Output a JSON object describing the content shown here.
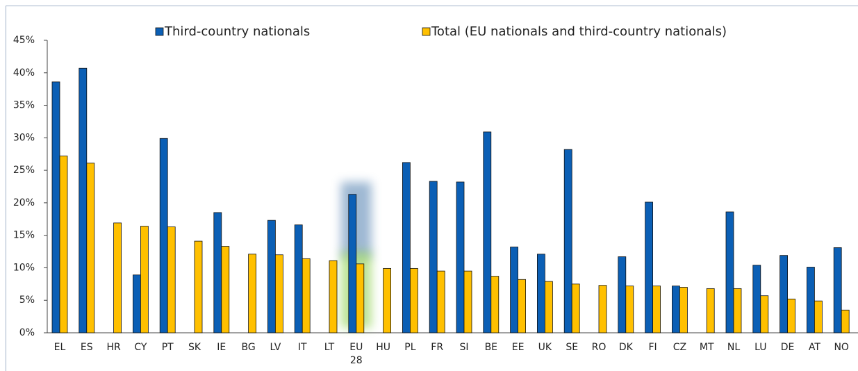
{
  "chart_data": {
    "type": "bar",
    "categories": [
      "EL",
      "ES",
      "HR",
      "CY",
      "PT",
      "SK",
      "IE",
      "BG",
      "LV",
      "IT",
      "LT",
      "EU 28",
      "HU",
      "PL",
      "FR",
      "SI",
      "BE",
      "EE",
      "UK",
      "SE",
      "RO",
      "DK",
      "FI",
      "CZ",
      "MT",
      "NL",
      "LU",
      "DE",
      "AT",
      "NO"
    ],
    "series": [
      {
        "name": "Third-country nationals",
        "color": "#0b5fb5",
        "values": [
          38.6,
          40.7,
          null,
          8.9,
          29.9,
          null,
          18.5,
          null,
          17.3,
          16.6,
          null,
          21.3,
          null,
          26.2,
          23.3,
          23.2,
          30.9,
          13.2,
          12.1,
          28.2,
          null,
          11.7,
          20.1,
          7.2,
          null,
          18.6,
          10.4,
          11.9,
          10.1,
          13.1
        ]
      },
      {
        "name": "Total (EU nationals and third-country nationals)",
        "color": "#ffc000",
        "values": [
          27.2,
          26.1,
          16.9,
          16.4,
          16.3,
          14.1,
          13.3,
          12.1,
          12.0,
          11.4,
          11.1,
          10.6,
          9.9,
          9.9,
          9.5,
          9.5,
          8.7,
          8.2,
          7.9,
          7.5,
          7.3,
          7.2,
          7.2,
          7.0,
          6.8,
          6.8,
          5.7,
          5.2,
          4.9,
          3.5
        ]
      }
    ],
    "ylim": [
      0,
      45
    ],
    "yticks": [
      {
        "value": 0,
        "label": "0%"
      },
      {
        "value": 5,
        "label": "5%"
      },
      {
        "value": 10,
        "label": "10%"
      },
      {
        "value": 15,
        "label": "15%"
      },
      {
        "value": 20,
        "label": "20%"
      },
      {
        "value": 25,
        "label": "25%"
      },
      {
        "value": 30,
        "label": "30%"
      },
      {
        "value": 35,
        "label": "35%"
      },
      {
        "value": 40,
        "label": "40%"
      },
      {
        "value": 45,
        "label": "45%"
      }
    ],
    "grid": false,
    "legend": "top"
  }
}
